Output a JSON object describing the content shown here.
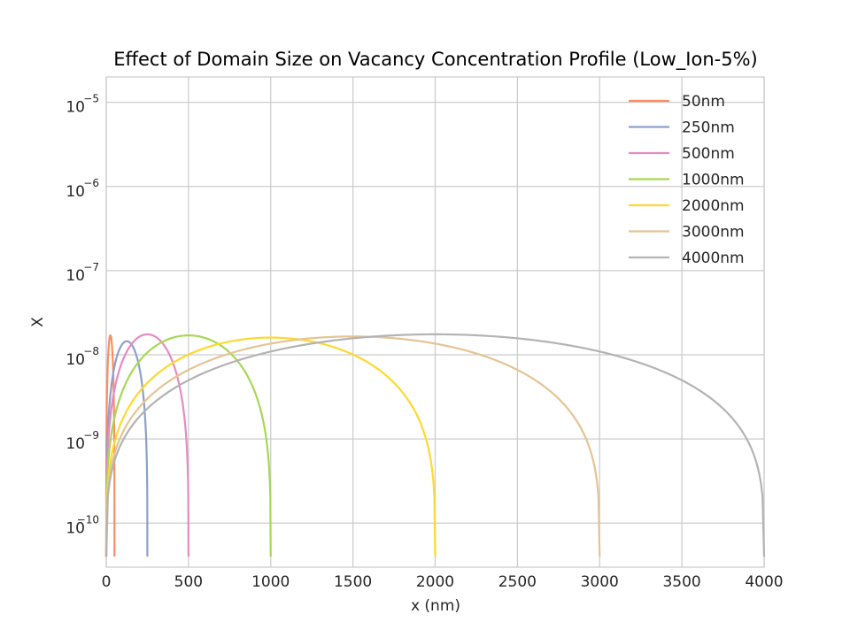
{
  "chart_data": {
    "type": "line",
    "title": "Effect of Domain Size on Vacancy Concentration Profile (Low_Ion-5%)",
    "xlabel": "x (nm)",
    "ylabel": "X",
    "yscale": "log",
    "xlim": [
      0,
      4000
    ],
    "ylim": [
      3e-11,
      2e-05
    ],
    "grid": true,
    "legend_position": "top-right",
    "x_ticks": [
      {
        "value": 0,
        "label": "0"
      },
      {
        "value": 500,
        "label": "500"
      },
      {
        "value": 1000,
        "label": "1000"
      },
      {
        "value": 1500,
        "label": "1500"
      },
      {
        "value": 2000,
        "label": "2000"
      },
      {
        "value": 2500,
        "label": "2500"
      },
      {
        "value": 3000,
        "label": "3000"
      },
      {
        "value": 3500,
        "label": "3500"
      },
      {
        "value": 4000,
        "label": "4000"
      }
    ],
    "y_ticks": [
      {
        "value": 1e-10,
        "base": "10",
        "exp": "−10"
      },
      {
        "value": 1e-09,
        "base": "10",
        "exp": "−9"
      },
      {
        "value": 1e-08,
        "base": "10",
        "exp": "−8"
      },
      {
        "value": 1e-07,
        "base": "10",
        "exp": "−7"
      },
      {
        "value": 1e-06,
        "base": "10",
        "exp": "−6"
      },
      {
        "value": 1e-05,
        "base": "10",
        "exp": "−5"
      }
    ],
    "series": [
      {
        "name": "50nm",
        "color": "#fc8d62",
        "domain": 50,
        "peak": 1.7e-08
      },
      {
        "name": "250nm",
        "color": "#8da0cb",
        "domain": 250,
        "peak": 1.45e-08
      },
      {
        "name": "500nm",
        "color": "#e78ac3",
        "domain": 500,
        "peak": 1.75e-08
      },
      {
        "name": "1000nm",
        "color": "#a6d854",
        "domain": 1000,
        "peak": 1.7e-08
      },
      {
        "name": "2000nm",
        "color": "#ffd92f",
        "domain": 2000,
        "peak": 1.6e-08
      },
      {
        "name": "3000nm",
        "color": "#e5c494",
        "domain": 3000,
        "peak": 1.65e-08
      },
      {
        "name": "4000nm",
        "color": "#b3b3b3",
        "domain": 4000,
        "peak": 1.75e-08
      }
    ],
    "edge_value": 4e-11
  }
}
